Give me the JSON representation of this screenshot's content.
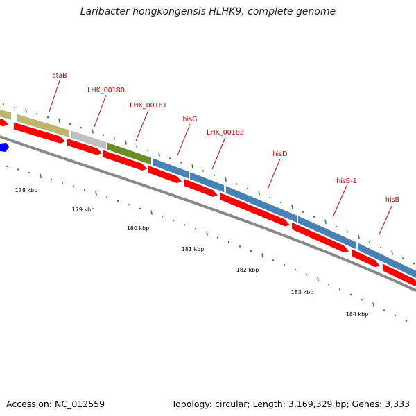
{
  "title": "Laribacter hongkongensis HLHK9, complete genome",
  "footer": {
    "accession": "Accession: NC_012559",
    "summary": "Topology: circular; Length: 3,169,329 bp; Genes: 3,333"
  },
  "colors": {
    "backbone": "#888888",
    "cds_forward": "#ff0000",
    "tick": "#228b22",
    "dot": "#228b22",
    "label": "#cc0000",
    "blue_marker": "#0000ff",
    "khaki": "#bdb76b",
    "gray": "#c0c0c0",
    "olive": "#6b8e23",
    "steelblue": "#4682b4"
  },
  "gene_labels": [
    {
      "name": "ctaB"
    },
    {
      "name": "LHK_00180"
    },
    {
      "name": "LHK_00181"
    },
    {
      "name": "hisG"
    },
    {
      "name": "LHK_00183"
    },
    {
      "name": "hisD"
    },
    {
      "name": "hisB-1"
    },
    {
      "name": "hisB"
    }
  ],
  "kbp_labels": [
    "178 kbp",
    "179 kbp",
    "180 kbp",
    "181 kbp",
    "182 kbp",
    "183 kbp",
    "184 kbp"
  ]
}
